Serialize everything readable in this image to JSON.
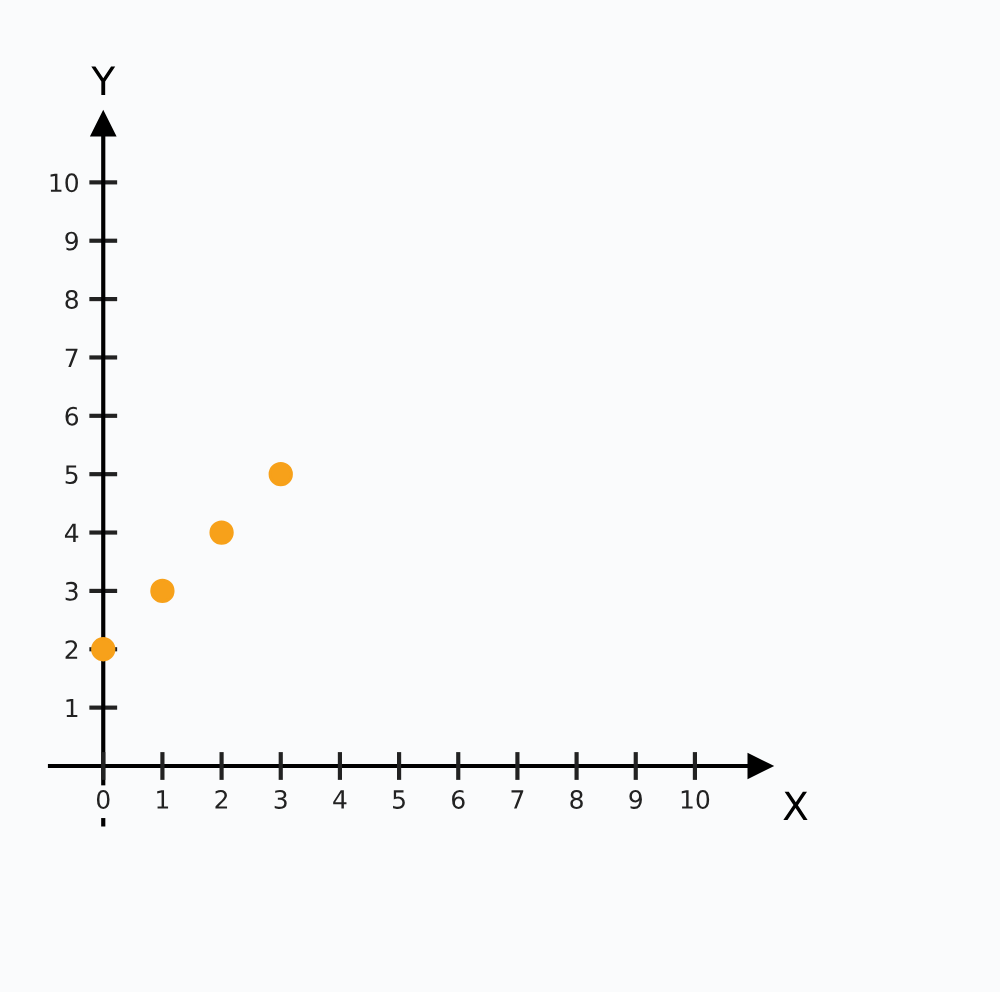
{
  "chart_data": {
    "type": "scatter",
    "xlabel": "X",
    "ylabel": "Y",
    "x": [
      0,
      1,
      2,
      3
    ],
    "series": [
      {
        "color": "#f7a11a",
        "values": [
          2,
          3,
          4,
          5
        ]
      }
    ],
    "xlim": [
      -0.9,
      11.1
    ],
    "ylim": [
      -1,
      11
    ],
    "xticks": [
      0,
      1,
      2,
      3,
      4,
      5,
      6,
      7,
      8,
      9,
      10
    ],
    "yticks": [
      1,
      2,
      3,
      4,
      5,
      6,
      7,
      8,
      9,
      10
    ],
    "marker": "circle",
    "grid": false,
    "legend": false
  }
}
